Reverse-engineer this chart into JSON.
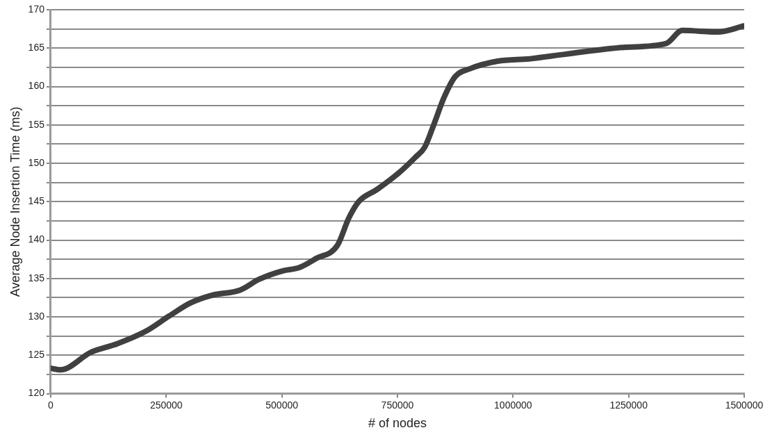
{
  "chart_data": {
    "type": "line",
    "xlabel": "# of nodes",
    "ylabel": "Average Node Insertion Time (ms)",
    "xlim": [
      0,
      1500000
    ],
    "xticks": [
      0,
      250000,
      500000,
      750000,
      1000000,
      1250000,
      1500000
    ],
    "ylim": [
      120,
      170
    ],
    "yticks": [
      120,
      {
        "value": 122.5,
        "label": null
      },
      125,
      {
        "value": 127.5,
        "label": null
      },
      130,
      {
        "value": 132.5,
        "label": null
      },
      135,
      {
        "value": 137.5,
        "label": null
      },
      140,
      {
        "value": 142.5,
        "label": null
      },
      145,
      {
        "value": 147.5,
        "label": null
      },
      150,
      {
        "value": 152.5,
        "label": null
      },
      155,
      {
        "value": 157.5,
        "label": null
      },
      160,
      {
        "value": 162.5,
        "label": null
      },
      165,
      {
        "value": 167.5,
        "label": null
      },
      170
    ],
    "grid": "y",
    "legend": false,
    "marker": "none",
    "line_style": "solid",
    "series": [
      {
        "color": "#404040",
        "x": [
          0,
          21000,
          87500,
          144000,
          205000,
          256000,
          302000,
          348000,
          410000,
          451000,
          502000,
          537000,
          574000,
          620000,
          645000,
          666000,
          706000,
          752000,
          789000,
          809000,
          829000,
          851000,
          875000,
          906000,
          967000,
          1035000,
          1112000,
          1239000,
          1331000,
          1366000,
          1443000,
          1500000
        ],
        "values": [
          123.3,
          123.1,
          125.4,
          126.5,
          128.1,
          130.1,
          131.8,
          132.8,
          133.5,
          134.9,
          136.0,
          136.4,
          137.6,
          139.3,
          142.9,
          145.0,
          146.6,
          148.7,
          150.8,
          152.1,
          155.1,
          158.6,
          161.3,
          162.3,
          163.3,
          163.6,
          164.2,
          165.1,
          165.6,
          167.3,
          167.1,
          167.9
        ]
      }
    ]
  }
}
